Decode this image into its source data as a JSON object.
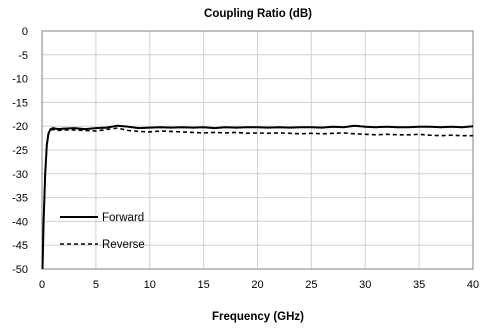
{
  "chart_data": {
    "type": "line",
    "title": "Coupling Ratio (dB)",
    "xlabel": "Frequency  (GHz)",
    "ylabel": "",
    "xlim": [
      0,
      40
    ],
    "ylim": [
      -50,
      0
    ],
    "xticks": [
      0,
      5,
      10,
      15,
      20,
      25,
      30,
      35,
      40
    ],
    "yticks": [
      0,
      -5,
      -10,
      -15,
      -20,
      -25,
      -30,
      -35,
      -40,
      -45,
      -50
    ],
    "grid": true,
    "legend_position": "bottom-left",
    "series": [
      {
        "name": "Forward",
        "style": "solid",
        "color": "#000000",
        "x": [
          0.05,
          0.15,
          0.3,
          0.45,
          0.6,
          0.8,
          1.0,
          1.5,
          2,
          3,
          4,
          5,
          6,
          7,
          8,
          9,
          10,
          11,
          12,
          13,
          14,
          15,
          16,
          17,
          18,
          19,
          20,
          21,
          22,
          23,
          24,
          25,
          26,
          27,
          28,
          29,
          30,
          31,
          32,
          33,
          34,
          35,
          36,
          37,
          38,
          39,
          40
        ],
        "y": [
          -50,
          -40,
          -30,
          -24,
          -21.5,
          -20.6,
          -20.4,
          -20.6,
          -20.5,
          -20.4,
          -20.6,
          -20.4,
          -20.3,
          -19.9,
          -20.1,
          -20.4,
          -20.3,
          -20.2,
          -20.3,
          -20.2,
          -20.3,
          -20.2,
          -20.4,
          -20.2,
          -20.3,
          -20.2,
          -20.2,
          -20.3,
          -20.2,
          -20.3,
          -20.2,
          -20.2,
          -20.3,
          -20.1,
          -20.2,
          -19.9,
          -20.1,
          -20.2,
          -20.1,
          -20.2,
          -20.2,
          -20.1,
          -20.1,
          -20.2,
          -20.1,
          -20.2,
          -20.0
        ]
      },
      {
        "name": "Reverse",
        "style": "dashed",
        "color": "#000000",
        "x": [
          0.05,
          0.15,
          0.3,
          0.45,
          0.6,
          0.8,
          1.0,
          1.5,
          2,
          3,
          4,
          5,
          6,
          7,
          8,
          9,
          10,
          11,
          12,
          13,
          14,
          15,
          16,
          17,
          18,
          19,
          20,
          21,
          22,
          23,
          24,
          25,
          26,
          27,
          28,
          29,
          30,
          31,
          32,
          33,
          34,
          35,
          36,
          37,
          38,
          39,
          40
        ],
        "y": [
          -50,
          -40,
          -30,
          -24,
          -21.5,
          -20.8,
          -20.7,
          -20.9,
          -20.8,
          -20.8,
          -20.9,
          -21.0,
          -20.7,
          -20.4,
          -20.9,
          -21.1,
          -21.2,
          -21.0,
          -21.1,
          -21.2,
          -21.3,
          -21.4,
          -21.3,
          -21.4,
          -21.3,
          -21.5,
          -21.4,
          -21.5,
          -21.4,
          -21.5,
          -21.6,
          -21.5,
          -21.6,
          -21.5,
          -21.4,
          -21.6,
          -21.7,
          -21.8,
          -21.7,
          -21.8,
          -21.8,
          -21.7,
          -21.9,
          -22.0,
          -21.9,
          -22.0,
          -22.0
        ]
      }
    ]
  }
}
